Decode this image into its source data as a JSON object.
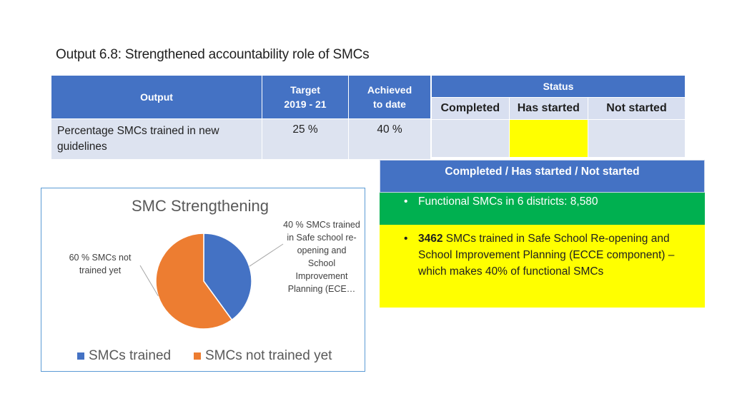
{
  "title": "Output 6.8: Strengthened accountability role of SMCs",
  "table": {
    "headers": {
      "output": "Output",
      "target_line1": "Target",
      "target_line2": "2019 - 21",
      "achieved_line1": "Achieved",
      "achieved_line2": "to date"
    },
    "row": {
      "output": "Percentage SMCs trained in new guidelines",
      "target": "25 %",
      "achieved": "40 %"
    }
  },
  "status": {
    "header": "Status",
    "columns": [
      "Completed",
      "Has started",
      "Not started"
    ],
    "colors": {
      "completed": "#dde3f0",
      "has_started": "#ffff00",
      "not_started": "#dde3f0"
    }
  },
  "panel": {
    "header": "Completed / Has started / Not started",
    "green_item": "Functional SMCs in 6 districts: 8,580",
    "yellow_item_bold": "3462",
    "yellow_item_rest": " SMCs trained in Safe School Re-opening and School Improvement Planning (ECCE component) – which makes 40% of functional SMCs",
    "bullet": "•"
  },
  "chart_data": {
    "type": "pie",
    "title": "SMC Strengthening",
    "slices": [
      {
        "name": "SMCs trained",
        "value": 40,
        "color": "#4472c4",
        "label_lines": [
          "40 % SMCs trained",
          "in Safe school re-",
          "opening and",
          "School",
          "Improvement",
          "Planning (ECE…"
        ]
      },
      {
        "name": "SMCs not trained yet",
        "value": 60,
        "color": "#ed7d31",
        "label_lines": [
          "60 % SMCs not",
          "trained yet"
        ]
      }
    ],
    "legend_position": "bottom"
  }
}
